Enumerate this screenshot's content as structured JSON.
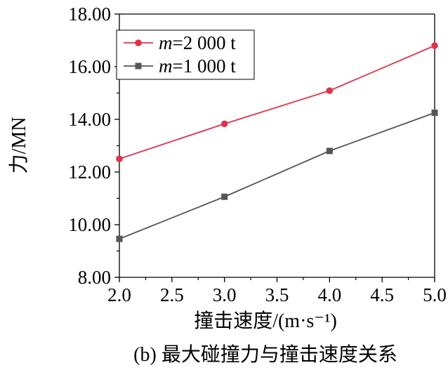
{
  "chart_data": {
    "type": "line",
    "title": "",
    "caption": "(b) 最大碰撞力与撞击速度关系",
    "xlabel": "撞击速度/(m·s⁻¹)",
    "ylabel": "力/MN",
    "x": [
      2.0,
      3.0,
      4.0,
      5.0
    ],
    "xlim": [
      2.0,
      5.0
    ],
    "ylim": [
      8.0,
      18.0
    ],
    "x_ticks": [
      "2.0",
      "2.5",
      "3.0",
      "3.5",
      "4.0",
      "4.5",
      "5.0"
    ],
    "y_ticks": [
      "8.00",
      "10.00",
      "12.00",
      "14.00",
      "16.00",
      "18.00"
    ],
    "grid": false,
    "legend_position": "top-left",
    "series": [
      {
        "name_var": "m",
        "name_rest": "=2 000 t",
        "color": "#e0324a",
        "marker": "circle",
        "values": [
          12.5,
          13.83,
          15.09,
          16.8
        ]
      },
      {
        "name_var": "m",
        "name_rest": "=1 000 t",
        "color": "#555555",
        "marker": "square",
        "values": [
          9.46,
          11.06,
          12.8,
          14.25
        ]
      }
    ]
  }
}
